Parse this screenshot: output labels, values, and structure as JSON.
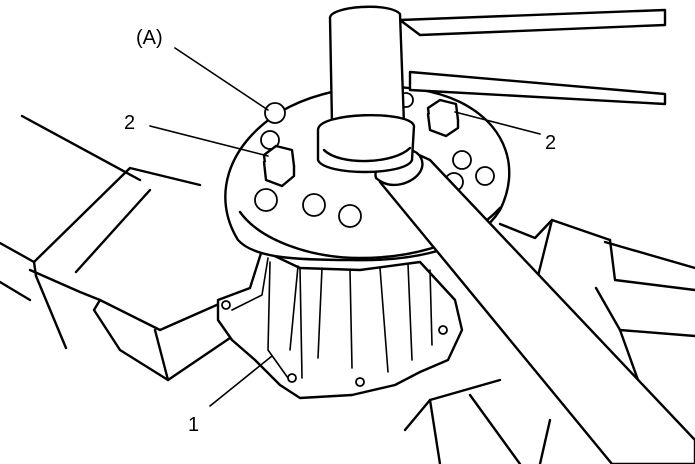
{
  "figure": {
    "callouts": {
      "tool": "(A)",
      "bolt_left": "2",
      "bolt_right": "2",
      "pump": "1"
    },
    "line_color": "#000000",
    "background": "#ffffff"
  }
}
